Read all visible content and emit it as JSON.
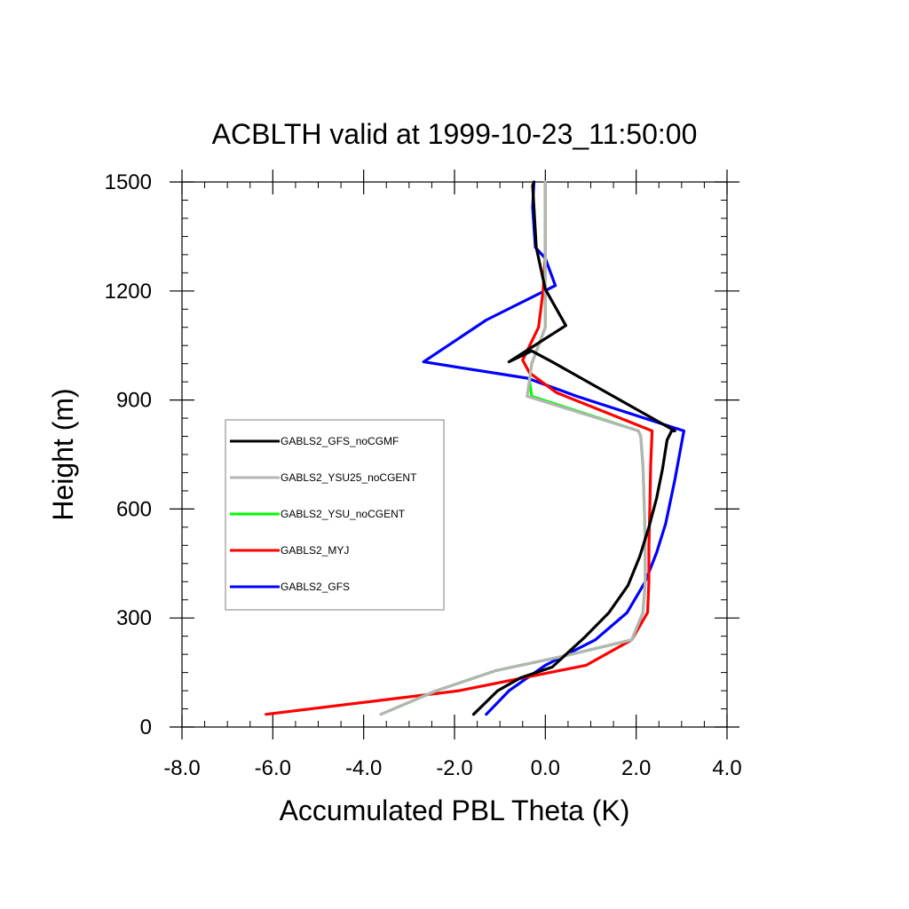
{
  "chart_data": {
    "type": "line",
    "title": "ACBLTH valid at 1999-10-23_11:50:00",
    "xlabel": "Accumulated PBL Theta (K)",
    "ylabel": "Height (m)",
    "xlim": [
      -8.0,
      4.0
    ],
    "ylim": [
      0,
      1500
    ],
    "xticks": [
      "-8.0",
      "-6.0",
      "-4.0",
      "-2.0",
      "0.0",
      "2.0",
      "4.0"
    ],
    "yticks": [
      "0",
      "300",
      "600",
      "900",
      "1200",
      "1500"
    ],
    "xtick_values": [
      -8,
      -6,
      -4,
      -2,
      0,
      2,
      4
    ],
    "ytick_values": [
      0,
      300,
      600,
      900,
      1200,
      1500
    ],
    "grid": false,
    "legend_position": "left-middle inside plot",
    "series": [
      {
        "name": "GABLS2_GFS_noCGMF",
        "color": "#000000",
        "x": [
          -1.58,
          -1.05,
          -0.55,
          0.15,
          0.85,
          1.4,
          1.82,
          2.08,
          2.28,
          2.45,
          2.58,
          2.68,
          2.78,
          2.85,
          0.15,
          -0.3,
          -0.8,
          0.45,
          0.0,
          -0.2,
          -0.25,
          -0.28,
          -0.25
        ],
        "y": [
          35,
          100,
          135,
          165,
          245,
          315,
          390,
          470,
          550,
          630,
          710,
          790,
          815,
          815,
          1005,
          1035,
          1005,
          1105,
          1205,
          1320,
          1430,
          1490,
          1500
        ]
      },
      {
        "name": "GABLS2_YSU25_noCGENT",
        "color": "#b4b4b4",
        "x": [
          -3.62,
          -2.4,
          -1.1,
          0.4,
          1.9,
          2.15,
          2.2,
          2.2,
          2.18,
          2.15,
          2.1,
          2.05,
          -0.4,
          -0.35,
          -0.3,
          0.0,
          0.0,
          0.0
        ],
        "y": [
          35,
          100,
          155,
          195,
          240,
          315,
          400,
          500,
          600,
          720,
          800,
          815,
          910,
          955,
          1000,
          1100,
          1200,
          1500
        ]
      },
      {
        "name": "GABLS2_YSU_noCGENT",
        "color": "#00ff00",
        "x": [
          -3.62,
          -2.4,
          -1.1,
          0.4,
          1.9,
          2.15,
          2.2,
          2.2,
          2.18,
          2.15,
          2.1,
          2.05,
          -0.3,
          -0.35,
          -0.3,
          0.0,
          0.0,
          0.0
        ],
        "y": [
          35,
          100,
          155,
          195,
          240,
          315,
          400,
          500,
          600,
          720,
          800,
          815,
          910,
          955,
          1000,
          1100,
          1200,
          1500
        ]
      },
      {
        "name": "GABLS2_MYJ",
        "color": "#ff0000",
        "x": [
          -6.15,
          -1.9,
          0.9,
          1.9,
          2.25,
          2.28,
          2.28,
          2.3,
          2.32,
          2.35,
          0.25,
          -0.35,
          -0.5,
          -0.15,
          -0.05,
          0.0,
          0.0,
          0.0
        ],
        "y": [
          35,
          100,
          170,
          240,
          315,
          400,
          500,
          600,
          720,
          815,
          920,
          975,
          1010,
          1100,
          1200,
          1300,
          1400,
          1500
        ]
      },
      {
        "name": "GABLS2_GFS",
        "color": "#0000ff",
        "x": [
          -1.3,
          -0.8,
          0.0,
          1.1,
          1.8,
          2.2,
          2.45,
          2.65,
          2.85,
          3.05,
          0.7,
          -0.4,
          -2.68,
          -1.3,
          0.22,
          0.0,
          -0.22,
          -0.28,
          -0.25
        ],
        "y": [
          35,
          100,
          170,
          240,
          315,
          400,
          480,
          560,
          680,
          815,
          910,
          960,
          1005,
          1120,
          1215,
          1290,
          1320,
          1430,
          1500
        ]
      }
    ]
  }
}
